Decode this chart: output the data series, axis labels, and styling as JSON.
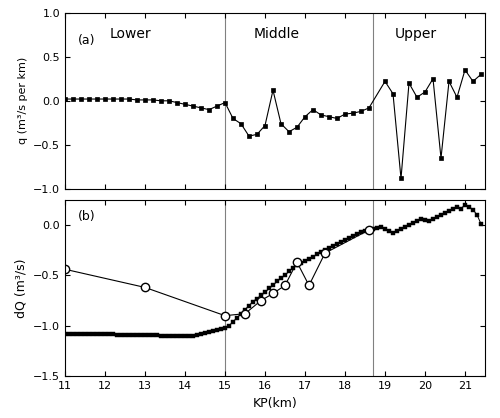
{
  "panel_a_x": [
    11.0,
    11.2,
    11.4,
    11.6,
    11.8,
    12.0,
    12.2,
    12.4,
    12.6,
    12.8,
    13.0,
    13.2,
    13.4,
    13.6,
    13.8,
    14.0,
    14.2,
    14.4,
    14.6,
    14.8,
    15.0,
    15.2,
    15.4,
    15.6,
    15.8,
    16.0,
    16.2,
    16.4,
    16.6,
    16.8,
    17.0,
    17.2,
    17.4,
    17.6,
    17.8,
    18.0,
    18.2,
    18.4,
    18.6,
    19.0,
    19.2,
    19.4,
    19.6,
    19.8,
    20.0,
    20.2,
    20.4,
    20.6,
    20.8,
    21.0,
    21.2,
    21.4
  ],
  "panel_a_y": [
    0.02,
    0.02,
    0.02,
    0.02,
    0.02,
    0.02,
    0.02,
    0.02,
    0.02,
    0.01,
    0.01,
    0.01,
    0.0,
    0.0,
    -0.02,
    -0.04,
    -0.06,
    -0.08,
    -0.1,
    -0.06,
    -0.02,
    -0.2,
    -0.26,
    -0.4,
    -0.38,
    -0.28,
    0.12,
    -0.26,
    -0.35,
    -0.3,
    -0.18,
    -0.1,
    -0.16,
    -0.18,
    -0.2,
    -0.15,
    -0.14,
    -0.12,
    -0.08,
    0.22,
    0.08,
    -0.88,
    0.2,
    0.04,
    0.1,
    0.25,
    -0.65,
    0.22,
    0.04,
    0.35,
    0.22,
    0.3
  ],
  "panel_b_sim_x": [
    11.0,
    11.1,
    11.2,
    11.3,
    11.4,
    11.5,
    11.6,
    11.7,
    11.8,
    11.9,
    12.0,
    12.1,
    12.2,
    12.3,
    12.4,
    12.5,
    12.6,
    12.7,
    12.8,
    12.9,
    13.0,
    13.1,
    13.2,
    13.3,
    13.4,
    13.5,
    13.6,
    13.7,
    13.8,
    13.9,
    14.0,
    14.1,
    14.2,
    14.3,
    14.4,
    14.5,
    14.6,
    14.7,
    14.8,
    14.9,
    15.0,
    15.1,
    15.2,
    15.3,
    15.4,
    15.5,
    15.6,
    15.7,
    15.8,
    15.9,
    16.0,
    16.1,
    16.2,
    16.3,
    16.4,
    16.5,
    16.6,
    16.7,
    16.8,
    16.9,
    17.0,
    17.1,
    17.2,
    17.3,
    17.4,
    17.5,
    17.6,
    17.7,
    17.8,
    17.9,
    18.0,
    18.1,
    18.2,
    18.3,
    18.4,
    18.5,
    18.6,
    18.7,
    18.8,
    18.9,
    19.0,
    19.1,
    19.2,
    19.3,
    19.4,
    19.5,
    19.6,
    19.7,
    19.8,
    19.9,
    20.0,
    20.1,
    20.2,
    20.3,
    20.4,
    20.5,
    20.6,
    20.7,
    20.8,
    20.9,
    21.0,
    21.1,
    21.2,
    21.3,
    21.4
  ],
  "panel_b_sim_y": [
    -1.08,
    -1.08,
    -1.08,
    -1.08,
    -1.08,
    -1.08,
    -1.08,
    -1.08,
    -1.08,
    -1.08,
    -1.08,
    -1.08,
    -1.08,
    -1.09,
    -1.09,
    -1.09,
    -1.09,
    -1.09,
    -1.09,
    -1.09,
    -1.09,
    -1.09,
    -1.09,
    -1.09,
    -1.1,
    -1.1,
    -1.1,
    -1.1,
    -1.1,
    -1.1,
    -1.1,
    -1.1,
    -1.1,
    -1.09,
    -1.08,
    -1.07,
    -1.06,
    -1.05,
    -1.04,
    -1.03,
    -1.02,
    -1.0,
    -0.96,
    -0.92,
    -0.88,
    -0.84,
    -0.8,
    -0.76,
    -0.73,
    -0.7,
    -0.67,
    -0.63,
    -0.6,
    -0.56,
    -0.53,
    -0.5,
    -0.46,
    -0.43,
    -0.4,
    -0.38,
    -0.36,
    -0.34,
    -0.32,
    -0.29,
    -0.27,
    -0.25,
    -0.23,
    -0.21,
    -0.19,
    -0.17,
    -0.15,
    -0.13,
    -0.11,
    -0.09,
    -0.07,
    -0.06,
    -0.05,
    -0.04,
    -0.03,
    -0.02,
    -0.04,
    -0.06,
    -0.08,
    -0.06,
    -0.04,
    -0.02,
    0.0,
    0.02,
    0.04,
    0.06,
    0.05,
    0.04,
    0.06,
    0.08,
    0.1,
    0.12,
    0.14,
    0.16,
    0.18,
    0.16,
    0.2,
    0.18,
    0.15,
    0.1,
    0.01
  ],
  "panel_b_obs_x": [
    11.0,
    13.0,
    15.0,
    15.5,
    15.9,
    16.2,
    16.5,
    16.8,
    17.1,
    17.5,
    18.6
  ],
  "panel_b_obs_y": [
    -0.44,
    -0.62,
    -0.9,
    -0.88,
    -0.75,
    -0.68,
    -0.6,
    -0.37,
    -0.6,
    -0.28,
    -0.05
  ],
  "lower_bound": 15.0,
  "upper_bound": 18.7,
  "xlim": [
    11,
    21.5
  ],
  "xticks": [
    11,
    12,
    13,
    14,
    15,
    16,
    17,
    18,
    19,
    20,
    21
  ],
  "panel_a_ylim": [
    -1.0,
    1.0
  ],
  "panel_a_yticks": [
    -1.0,
    -0.5,
    0.0,
    0.5,
    1.0
  ],
  "panel_b_ylim": [
    -1.5,
    0.25
  ],
  "panel_b_yticks": [
    -1.5,
    -1.0,
    -0.5,
    0.0
  ],
  "xlabel": "KP(km)",
  "panel_a_ylabel": "q (m³/s per km)",
  "panel_b_ylabel": "dQ (m³/s)",
  "lower_label": "Lower",
  "middle_label": "Middle",
  "upper_label": "Upper",
  "panel_a_label": "(a)",
  "panel_b_label": "(b)",
  "vline_color": "gray",
  "line_color": "black"
}
